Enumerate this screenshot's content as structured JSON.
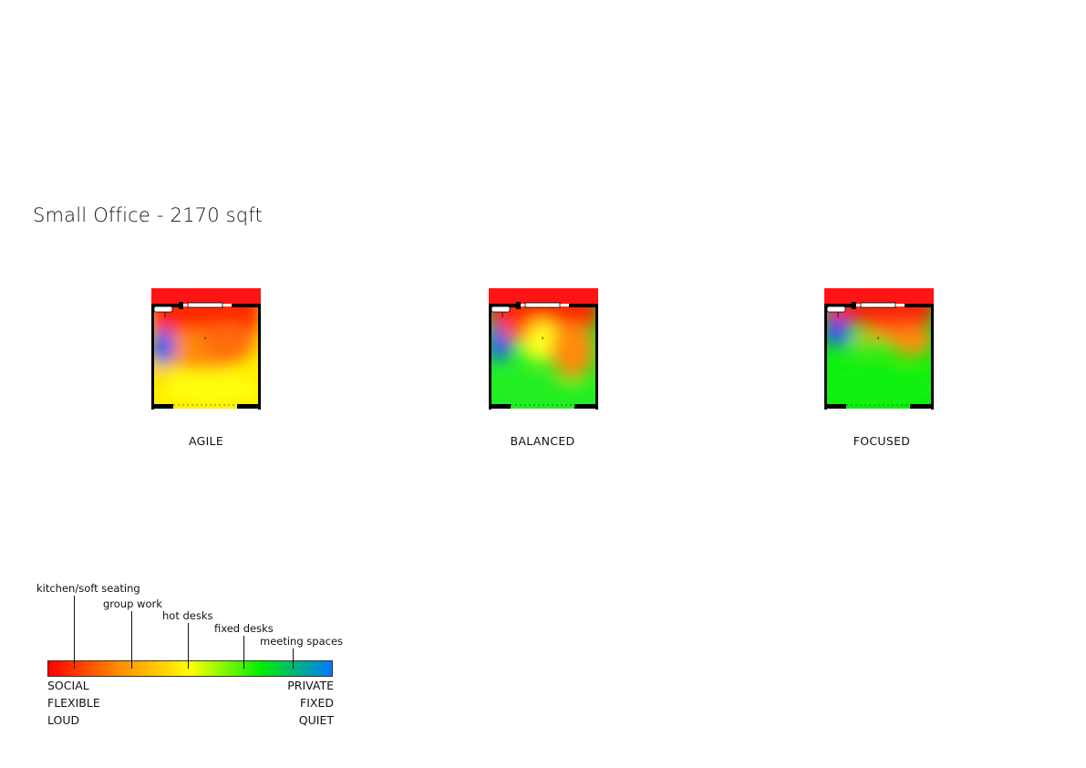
{
  "title": "Small Office - 2170 sqft",
  "plans": [
    {
      "label": "AGILE"
    },
    {
      "label": "BALANCED"
    },
    {
      "label": "FOCUSED"
    }
  ],
  "legend": {
    "zones": [
      {
        "label": "kitchen/soft seating",
        "position": 0.09
      },
      {
        "label": "group work",
        "position": 0.29
      },
      {
        "label": "hot desks",
        "position": 0.49
      },
      {
        "label": "fixed desks",
        "position": 0.69
      },
      {
        "label": "meeting spaces",
        "position": 0.86
      }
    ],
    "left": [
      "SOCIAL",
      "FLEXIBLE",
      "LOUD"
    ],
    "right": [
      "PRIVATE",
      "FIXED",
      "QUIET"
    ],
    "colors": [
      "#ff0000",
      "#ff8c00",
      "#ffff00",
      "#00ee00",
      "#0078ff"
    ]
  }
}
